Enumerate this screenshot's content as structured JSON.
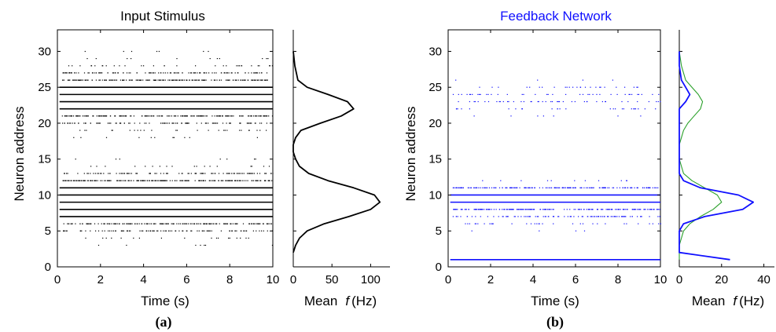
{
  "chart_data": [
    {
      "id": "raster_a",
      "type": "scatter",
      "title": "Input Stimulus",
      "title_color": "#000000",
      "xlabel": "Time (s)",
      "ylabel": "Neuron address",
      "xlim": [
        0,
        10
      ],
      "ylim": [
        0,
        33
      ],
      "xticks": [
        "0",
        "2",
        "4",
        "6",
        "8",
        "10"
      ],
      "yticks": [
        "0",
        "5",
        "10",
        "15",
        "20",
        "25",
        "30"
      ],
      "marker_color": "#000000",
      "series": [
        {
          "address": 3,
          "fraction_active": 0.03
        },
        {
          "address": 4,
          "fraction_active": 0.08
        },
        {
          "address": 5,
          "fraction_active": 0.45
        },
        {
          "address": 6,
          "fraction_active": 0.85
        },
        {
          "address": 7,
          "fraction_active": 1.0
        },
        {
          "address": 8,
          "fraction_active": 1.0
        },
        {
          "address": 9,
          "fraction_active": 1.0
        },
        {
          "address": 10,
          "fraction_active": 1.0
        },
        {
          "address": 11,
          "fraction_active": 1.0
        },
        {
          "address": 12,
          "fraction_active": 0.9
        },
        {
          "address": 13,
          "fraction_active": 0.45
        },
        {
          "address": 14,
          "fraction_active": 0.08
        },
        {
          "address": 15,
          "fraction_active": 0.03
        },
        {
          "address": 18,
          "fraction_active": 0.05
        },
        {
          "address": 19,
          "fraction_active": 0.12
        },
        {
          "address": 20,
          "fraction_active": 0.45
        },
        {
          "address": 21,
          "fraction_active": 0.8
        },
        {
          "address": 22,
          "fraction_active": 1.0
        },
        {
          "address": 23,
          "fraction_active": 1.0
        },
        {
          "address": 24,
          "fraction_active": 1.0
        },
        {
          "address": 25,
          "fraction_active": 1.0
        },
        {
          "address": 26,
          "fraction_active": 0.95
        },
        {
          "address": 27,
          "fraction_active": 0.55
        },
        {
          "address": 28,
          "fraction_active": 0.15
        },
        {
          "address": 29,
          "fraction_active": 0.05
        },
        {
          "address": 30,
          "fraction_active": 0.03
        }
      ]
    },
    {
      "id": "rate_a",
      "type": "line",
      "xlabel_prefix": "Mean",
      "xlabel_var": "f",
      "xlabel_unit": "(Hz)",
      "xlim": [
        0,
        125
      ],
      "ylim": [
        0,
        33
      ],
      "xticks": [
        0,
        50,
        100
      ],
      "xtick_labels": [
        "0",
        "50",
        "100"
      ],
      "series": [
        {
          "color": "#000000",
          "x": [
            0,
            3,
            8,
            18,
            40,
            72,
            100,
            112,
            105,
            78,
            45,
            20,
            8,
            3,
            0,
            0,
            3,
            10,
            35,
            62,
            78,
            70,
            45,
            18,
            6,
            2,
            0
          ],
          "y": [
            2,
            3,
            4,
            5,
            6,
            7,
            8,
            9,
            10,
            11,
            12,
            13,
            14,
            15,
            16,
            17,
            18,
            19,
            20,
            21,
            22,
            23,
            24,
            25,
            26,
            28,
            30
          ]
        }
      ]
    },
    {
      "id": "raster_b",
      "type": "scatter",
      "title": "Feedback Network",
      "title_color": "#1010ff",
      "xlabel": "Time (s)",
      "ylabel": "Neuron address",
      "xlim": [
        0,
        10
      ],
      "ylim": [
        0,
        33
      ],
      "xticks": [
        "0",
        "2",
        "4",
        "6",
        "8",
        "10"
      ],
      "yticks": [
        "0",
        "5",
        "10",
        "15",
        "20",
        "25",
        "30"
      ],
      "marker_color": "#1010ff",
      "series": [
        {
          "address": 1,
          "fraction_active": 1.0
        },
        {
          "address": 5,
          "fraction_active": 0.02
        },
        {
          "address": 6,
          "fraction_active": 0.15
        },
        {
          "address": 7,
          "fraction_active": 0.45
        },
        {
          "address": 8,
          "fraction_active": 0.9
        },
        {
          "address": 9,
          "fraction_active": 1.0
        },
        {
          "address": 10,
          "fraction_active": 1.0
        },
        {
          "address": 11,
          "fraction_active": 0.8
        },
        {
          "address": 12,
          "fraction_active": 0.05
        },
        {
          "address": 21,
          "fraction_active": 0.03
        },
        {
          "address": 22,
          "fraction_active": 0.12
        },
        {
          "address": 23,
          "fraction_active": 0.2
        },
        {
          "address": 24,
          "fraction_active": 0.18
        },
        {
          "address": 25,
          "fraction_active": 0.12
        },
        {
          "address": 26,
          "fraction_active": 0.02
        }
      ]
    },
    {
      "id": "rate_b",
      "type": "line",
      "xlabel_prefix": "Mean",
      "xlabel_var": "f",
      "xlabel_unit": "(Hz)",
      "xlim": [
        0,
        45
      ],
      "ylim": [
        0,
        33
      ],
      "xticks": [
        0,
        20,
        40
      ],
      "xtick_labels": [
        "0",
        "20",
        "40"
      ],
      "series": [
        {
          "color": "#1010ff",
          "x": [
            24,
            0,
            0,
            0,
            0,
            2,
            12,
            30,
            35,
            28,
            10,
            2,
            0,
            0,
            0,
            0,
            0,
            0,
            0,
            0,
            0,
            0,
            3,
            5,
            3,
            1,
            0,
            0
          ],
          "y": [
            1,
            2,
            3,
            4,
            5,
            6,
            7,
            8,
            9,
            10,
            11,
            12,
            13,
            14,
            15,
            16,
            17,
            18,
            19,
            20,
            21,
            22,
            23,
            24,
            25,
            26,
            28,
            30
          ]
        },
        {
          "color": "#2aa02a",
          "x": [
            0,
            0,
            0,
            1,
            2,
            5,
            10,
            16,
            20,
            18,
            12,
            6,
            2,
            1,
            0,
            0,
            0,
            1,
            2,
            4,
            7,
            10,
            11,
            9,
            6,
            3,
            1,
            0
          ],
          "y": [
            1,
            2,
            3,
            4,
            5,
            6,
            7,
            8,
            9,
            10,
            11,
            12,
            13,
            14,
            15,
            16,
            17,
            18,
            19,
            20,
            21,
            22,
            23,
            24,
            25,
            26,
            28,
            30
          ]
        }
      ]
    }
  ],
  "panel_labels": [
    "(a)",
    "(b)"
  ]
}
